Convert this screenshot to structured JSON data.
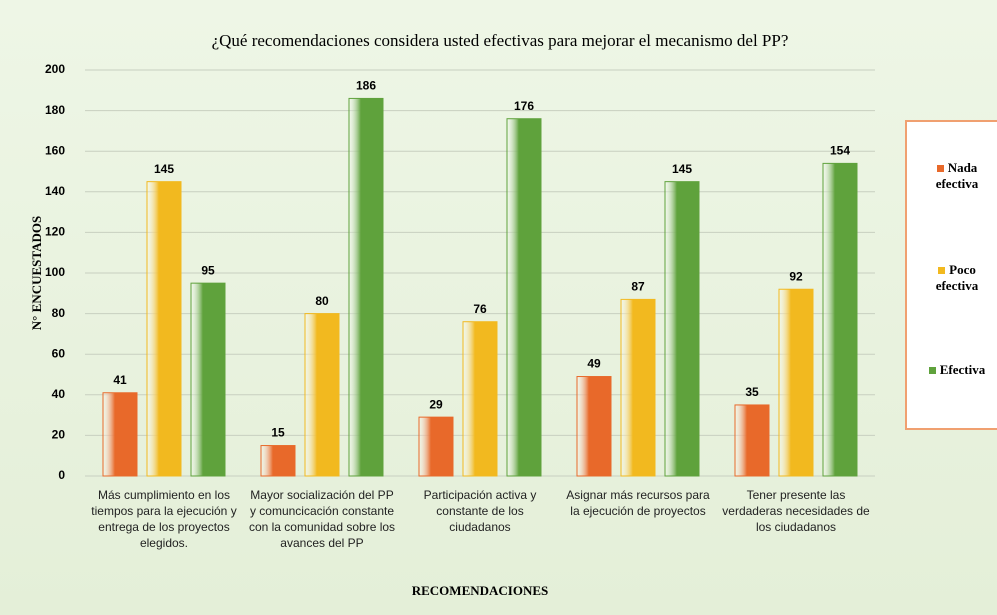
{
  "chart_data": {
    "type": "bar",
    "title": "¿Qué recomendaciones considera usted efectivas para mejorar el mecanismo del PP?",
    "xlabel": "RECOMENDACIONES",
    "ylabel": "N° ENCUESTADOS",
    "categories": [
      "Más cumplimiento en los tiempos para la ejecución y entrega de los proyectos elegidos.",
      "Mayor socialización del PP y comuncicación constante con la comunidad sobre los avances del PP",
      "Participación activa y constante de los ciudadanos",
      "Asignar más recursos para la ejecución de proyectos",
      "Tener presente las verdaderas necesidades de los ciudadanos"
    ],
    "series": [
      {
        "name": "Nada efectiva",
        "color": "#e8692a",
        "values": [
          41,
          15,
          29,
          49,
          35
        ]
      },
      {
        "name": "Poco efectiva",
        "color": "#f2b91f",
        "values": [
          145,
          80,
          76,
          87,
          92
        ]
      },
      {
        "name": "Efectiva",
        "color": "#5fa23c",
        "values": [
          95,
          186,
          176,
          145,
          154
        ]
      }
    ],
    "ylim": [
      0,
      200
    ],
    "yticks": [
      0,
      20,
      40,
      60,
      80,
      100,
      120,
      140,
      160,
      180,
      200
    ],
    "grid": true,
    "legend": "right"
  }
}
